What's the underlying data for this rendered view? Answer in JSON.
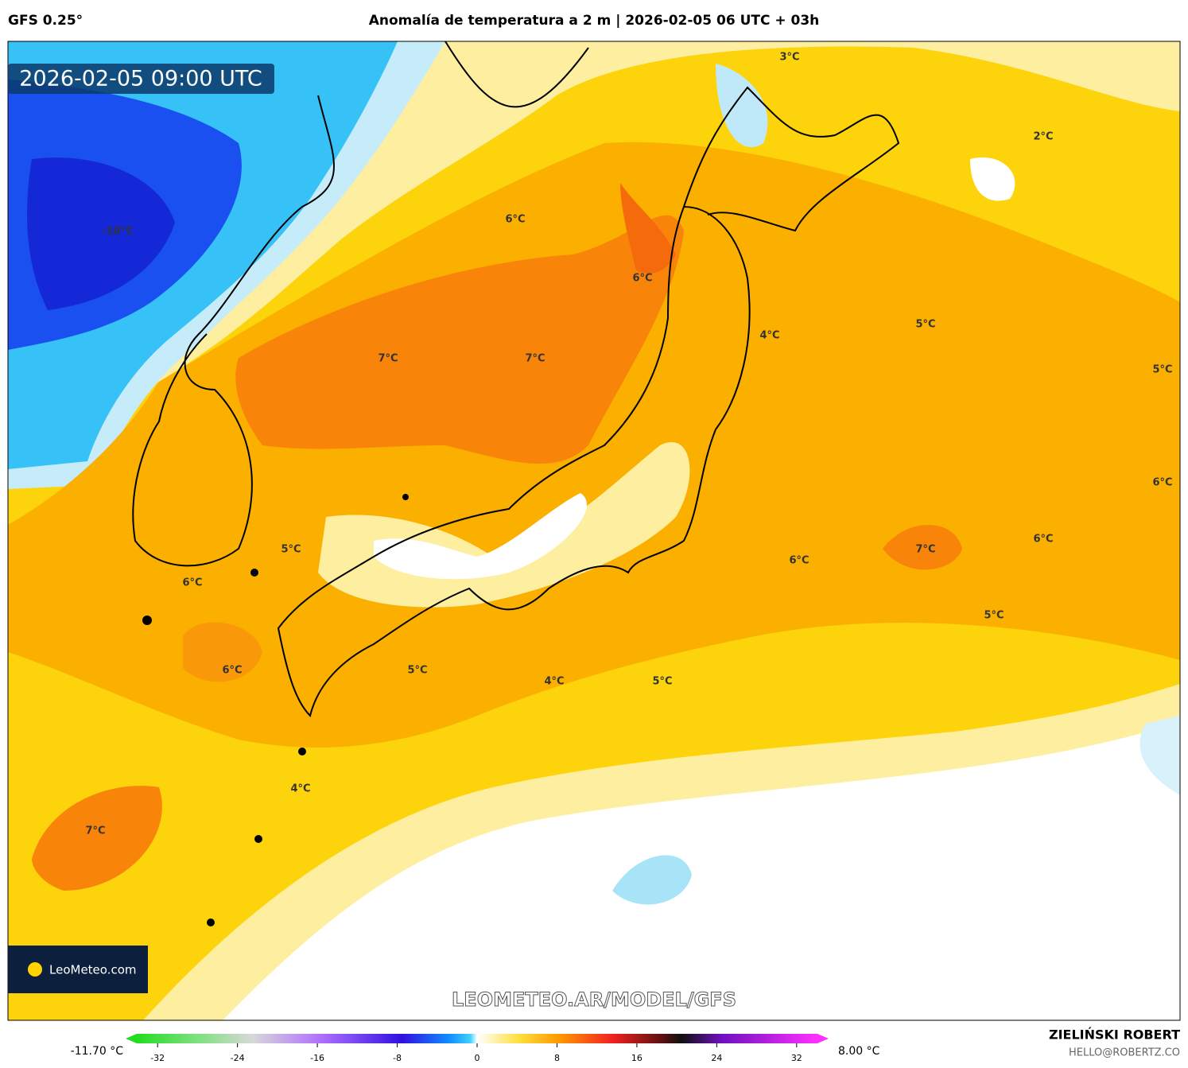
{
  "header": {
    "model": "GFS 0.25°",
    "title": "Anomalía de temperatura a 2 m | 2026-02-05 06 UTC + 03h"
  },
  "map": {
    "valid_time": "2026-02-05 09:00 UTC",
    "contour_labels": [
      "3°C",
      "2°C",
      "-10°C",
      "6°C",
      "6°C",
      "4°C",
      "5°C",
      "7°C",
      "7°C",
      "5°C",
      "6°C",
      "5°C",
      "6°C",
      "7°C",
      "6°C",
      "6°C",
      "5°C",
      "6°C",
      "5°C",
      "4°C",
      "5°C",
      "4°C",
      "7°C"
    ],
    "logo": "LeoMeteo.com",
    "watermark": "LEOMETEO.AR/MODEL/GFS"
  },
  "colorbar": {
    "min_label": "-11.70 °C",
    "max_label": "8.00 °C",
    "range": [
      -35.2,
      35.2
    ],
    "ticks": [
      -32,
      -24,
      -16,
      -8,
      0,
      8,
      16,
      24,
      32
    ]
  },
  "footer": {
    "author": "ZIELIŃSKI ROBERT",
    "contact": "HELLO@ROBERTZ.CO"
  }
}
